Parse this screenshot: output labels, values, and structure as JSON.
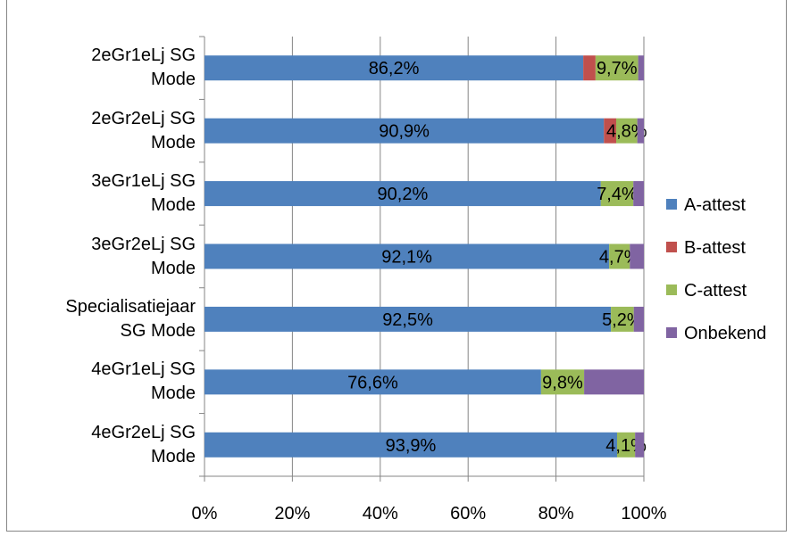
{
  "colors": {
    "A-attest": "#4F81BD",
    "B-attest": "#C0504D",
    "C-attest": "#9BBB59",
    "Onbekend": "#8064A2",
    "grid": "#868686"
  },
  "chart_data": {
    "type": "bar",
    "orientation": "horizontal",
    "stacked": "percent",
    "categories": [
      "2eGr1eLj SG Mode",
      "2eGr2eLj SG Mode",
      "3eGr1eLj SG Mode",
      "3eGr2eLj SG Mode",
      "Specialisatiejaar SG Mode",
      "4eGr1eLj SG Mode",
      "4eGr2eLj SG Mode"
    ],
    "category_lines": [
      [
        "2eGr1eLj SG",
        "Mode"
      ],
      [
        "2eGr2eLj SG",
        "Mode"
      ],
      [
        "3eGr1eLj SG",
        "Mode"
      ],
      [
        "3eGr2eLj SG",
        "Mode"
      ],
      [
        "Specialisatiejaar",
        "SG Mode"
      ],
      [
        "4eGr1eLj SG",
        "Mode"
      ],
      [
        "4eGr2eLj SG",
        "Mode"
      ]
    ],
    "series": [
      {
        "name": "A-attest",
        "values": [
          86.2,
          90.9,
          90.2,
          92.1,
          92.5,
          76.6,
          93.9
        ],
        "labels": [
          "86,2%",
          "90,9%",
          "90,2%",
          "92,1%",
          "92,5%",
          "76,6%",
          "93,9%"
        ]
      },
      {
        "name": "B-attest",
        "values": [
          2.8,
          2.8,
          0.0,
          0.0,
          0.0,
          0.0,
          0.0
        ],
        "labels": [
          "",
          "",
          "",
          "",
          "",
          "",
          ""
        ]
      },
      {
        "name": "C-attest",
        "values": [
          9.7,
          4.8,
          7.4,
          4.7,
          5.2,
          9.8,
          4.1
        ],
        "labels": [
          "9,7%",
          "4,8%",
          "7,4%",
          "4,7%",
          "5,2%",
          "9,8%",
          "4,1%"
        ]
      },
      {
        "name": "Onbekend",
        "values": [
          1.3,
          1.5,
          2.4,
          3.2,
          2.3,
          13.6,
          2.0
        ],
        "labels": [
          "",
          "",
          "",
          "",
          "",
          "",
          ""
        ]
      }
    ],
    "x_ticks": [
      "0%",
      "20%",
      "40%",
      "60%",
      "80%",
      "100%"
    ],
    "xlim": [
      0,
      100
    ],
    "grid": true,
    "legend_position": "right"
  }
}
